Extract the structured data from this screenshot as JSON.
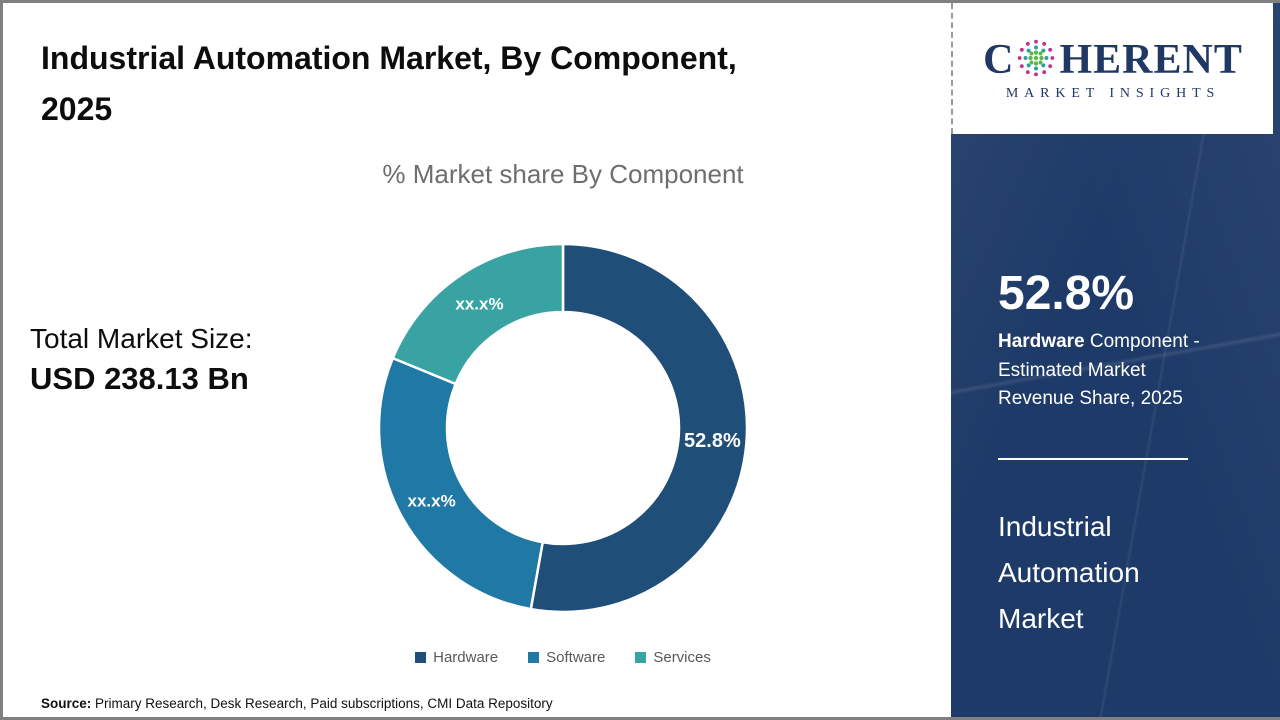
{
  "page": {
    "title_line1": "Industrial Automation Market, By Component,",
    "title_line2": "2025",
    "source_label": "Source:",
    "source_text": " Primary Research, Desk Research, Paid subscriptions, CMI Data Repository"
  },
  "logo": {
    "word_first": "C",
    "word_rest": "HERENT",
    "subtitle": "MARKET INSIGHTS",
    "text_color": "#1f3864"
  },
  "total_market": {
    "label": "Total Market Size:",
    "value": "USD 238.13 Bn"
  },
  "chart_data": {
    "type": "pie",
    "donut": true,
    "title": "% Market share By Component",
    "categories": [
      "Hardware",
      "Software",
      "Services"
    ],
    "values": [
      52.8,
      28.4,
      18.8
    ],
    "value_labels": [
      "52.8%",
      "xx.x%",
      "xx.x%"
    ],
    "colors": [
      "#1F4E79",
      "#2078A5",
      "#39A3A3"
    ],
    "start_angle_deg": 0,
    "direction": "clockwise",
    "legend_position": "bottom",
    "note": "Software and Services shares are masked as xx.x% in the source image; 28.4 and 18.8 are arc-angle estimates"
  },
  "sidebar": {
    "stat_value": "52.8%",
    "stat_bold": "Hardware",
    "stat_rest": " Component - Estimated Market Revenue Share, 2025",
    "market_name": "Industrial Automation Market",
    "bg_color": "#1e3a68"
  }
}
